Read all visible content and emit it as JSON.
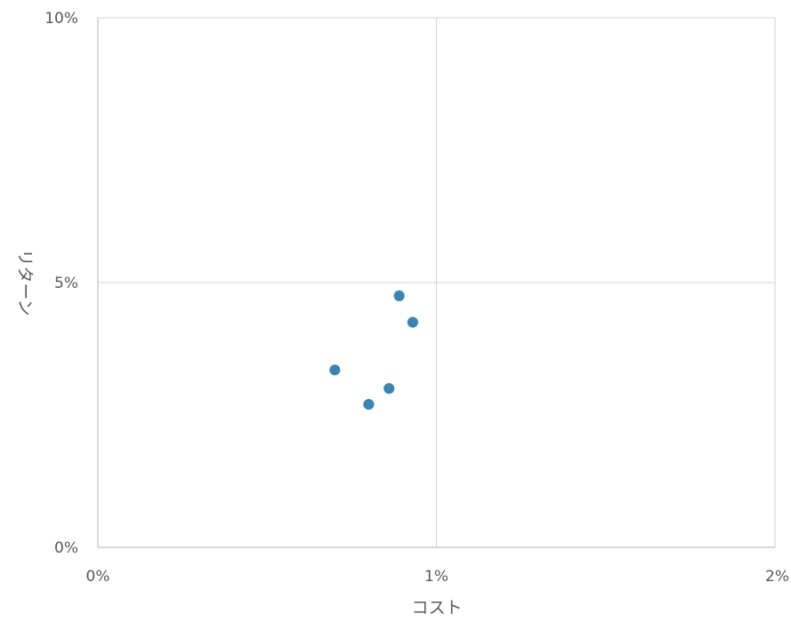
{
  "chart_data": {
    "type": "scatter",
    "title": "",
    "xlabel": "コスト",
    "ylabel": "リターン",
    "xlim": [
      0,
      0.02
    ],
    "ylim": [
      0,
      0.1
    ],
    "x_ticks": [
      0,
      0.01,
      0.02
    ],
    "x_tick_labels": [
      "0%",
      "1%",
      "2%"
    ],
    "y_ticks": [
      0,
      0.05,
      0.1
    ],
    "y_tick_labels": [
      "0%",
      "5%",
      "10%"
    ],
    "grid": true,
    "legend": "none",
    "series": [
      {
        "points": [
          {
            "x": 0.007,
            "y": 0.0335
          },
          {
            "x": 0.008,
            "y": 0.027
          },
          {
            "x": 0.0086,
            "y": 0.03
          },
          {
            "x": 0.0089,
            "y": 0.0475
          },
          {
            "x": 0.0093,
            "y": 0.0425
          }
        ],
        "color": "#3d85b1"
      }
    ],
    "colors": {
      "grid": "#d9d9d9",
      "axis": "#bfbfbf",
      "text": "#595959",
      "marker": "#3d85b1"
    }
  }
}
